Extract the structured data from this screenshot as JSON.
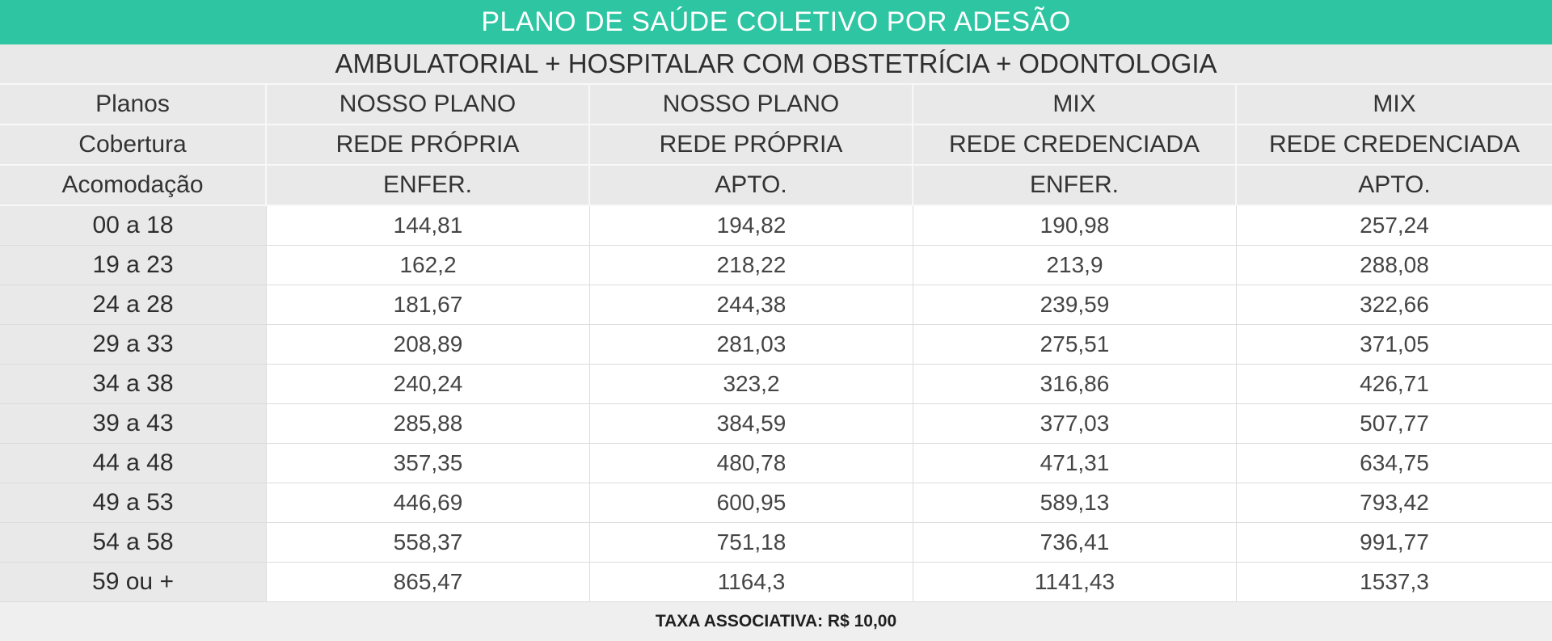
{
  "title": "PLANO DE SAÚDE COLETIVO POR ADESÃO",
  "subtitle": "AMBULATORIAL + HOSPITALAR COM OBSTETRÍCIA + ODONTOLOGIA",
  "header": {
    "row_labels": [
      "Planos",
      "Cobertura",
      "Acomodação"
    ],
    "columns": [
      {
        "plan": "NOSSO PLANO",
        "coverage": "REDE PRÓPRIA",
        "accommodation": "ENFER."
      },
      {
        "plan": "NOSSO PLANO",
        "coverage": "REDE PRÓPRIA",
        "accommodation": "APTO."
      },
      {
        "plan": "MIX",
        "coverage": "REDE CREDENCIADA",
        "accommodation": "ENFER."
      },
      {
        "plan": "MIX",
        "coverage": "REDE CREDENCIADA",
        "accommodation": "APTO."
      }
    ]
  },
  "rows": [
    {
      "age_range": "00 a 18",
      "values": [
        "144,81",
        "194,82",
        "190,98",
        "257,24"
      ]
    },
    {
      "age_range": "19 a 23",
      "values": [
        "162,2",
        "218,22",
        "213,9",
        "288,08"
      ]
    },
    {
      "age_range": "24 a 28",
      "values": [
        "181,67",
        "244,38",
        "239,59",
        "322,66"
      ]
    },
    {
      "age_range": "29 a 33",
      "values": [
        "208,89",
        "281,03",
        "275,51",
        "371,05"
      ]
    },
    {
      "age_range": "34 a 38",
      "values": [
        "240,24",
        "323,2",
        "316,86",
        "426,71"
      ]
    },
    {
      "age_range": "39 a 43",
      "values": [
        "285,88",
        "384,59",
        "377,03",
        "507,77"
      ]
    },
    {
      "age_range": "44 a 48",
      "values": [
        "357,35",
        "480,78",
        "471,31",
        "634,75"
      ]
    },
    {
      "age_range": "49 a 53",
      "values": [
        "446,69",
        "600,95",
        "589,13",
        "793,42"
      ]
    },
    {
      "age_range": "54 a 58",
      "values": [
        "558,37",
        "751,18",
        "736,41",
        "991,77"
      ]
    },
    {
      "age_range": "59 ou +",
      "values": [
        "865,47",
        "1164,3",
        "1141,43",
        "1537,3"
      ]
    }
  ],
  "footer": {
    "text": "TAXA ASSOCIATIVA: R$ 10,00"
  },
  "colors": {
    "accent_teal": "#2dc5a2",
    "band_gray": "#e9e9e9",
    "footer_gray": "#efefef",
    "grid_line": "#dcdcdc"
  }
}
